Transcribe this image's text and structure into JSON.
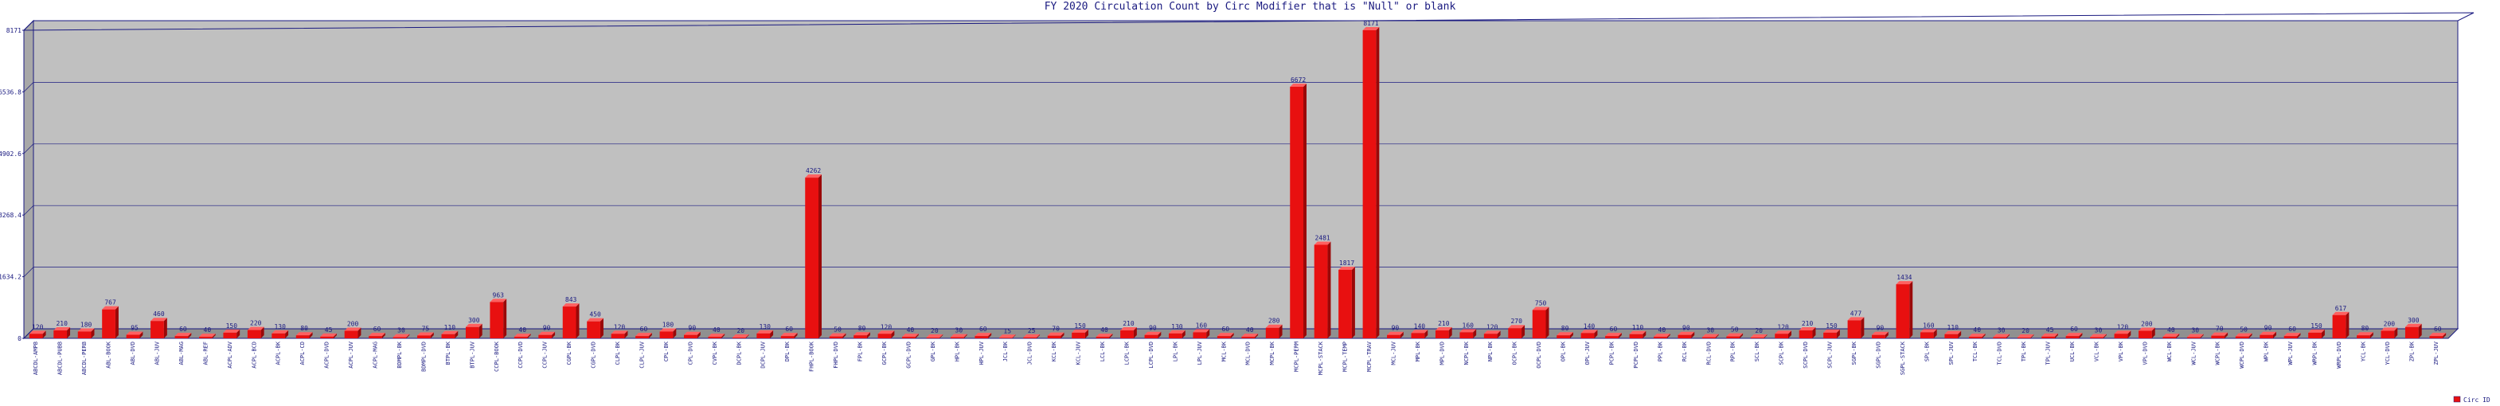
{
  "chart_data": {
    "type": "bar",
    "title": "FY 2020 Circulation Count by Circ Modifier that is \"Null\" or blank",
    "legend_label": "Circ ID",
    "color": "#e81010",
    "ylim": [
      0,
      8171
    ],
    "yticks": [
      0,
      1634.2,
      3268.4,
      4902.6,
      6536.8,
      8171
    ],
    "grid": true,
    "categories": [
      "ABCDL-AMPB",
      "ABCDL-PUBB",
      "ABCDL-PERB",
      "ABL-BOOK",
      "ABL-DVD",
      "ABL-JUV",
      "ABL-MAG",
      "ABL-REF",
      "ACPL-ADV",
      "ACPL-BCD",
      "ACPL-BK",
      "ACPL-CD",
      "ACPL-DVD",
      "ACPL-JUV",
      "ACPL-MAG",
      "BDMPL-BK",
      "BDMPL-DVD",
      "BTPL-BK",
      "BTPL-JUV",
      "CCPL-BOOK",
      "CCPL-DVD",
      "CCPL-JUV",
      "CGPL-BK",
      "CGPL-DVD",
      "CLPL-BK",
      "CLPL-JUV",
      "CPL-BK",
      "CPL-DVD",
      "CVPL-BK",
      "DCPL-BK",
      "DCPL-JUV",
      "DPL-BK",
      "FHPL-BOOK",
      "FHPL-DVD",
      "FPL-BK",
      "GCPL-BK",
      "GCPL-DVD",
      "GPL-BK",
      "HPL-BK",
      "HPL-JUV",
      "JCL-BK",
      "JCL-DVD",
      "KCL-BK",
      "KCL-JUV",
      "LCL-BK",
      "LCPL-BK",
      "LCPL-DVD",
      "LPL-BK",
      "LPL-JUV",
      "MCL-BK",
      "MCL-DVD",
      "MCPL-BK",
      "MCPL-PERM",
      "MCPL-STACK",
      "MCPL-TEMP",
      "MCPL-TRAV",
      "MCL-JUV",
      "MPL-BK",
      "MPL-DVD",
      "NCPL-BK",
      "NPL-BK",
      "OCPL-BK",
      "OCPL-DVD",
      "OPL-BK",
      "OPL-JUV",
      "PCPL-BK",
      "PCPL-DVD",
      "PPL-BK",
      "RCL-BK",
      "RCL-DVD",
      "RPL-BK",
      "SCL-BK",
      "SCPL-BK",
      "SCPL-DVD",
      "SCPL-JUV",
      "SGPL-BK",
      "SGPL-DVD",
      "SGPL-STACK",
      "SPL-BK",
      "SPL-JUV",
      "TCL-BK",
      "TCL-DVD",
      "TPL-BK",
      "TPL-JUV",
      "UCL-BK",
      "VCL-BK",
      "VPL-BK",
      "VPL-DVD",
      "WCL-BK",
      "WCL-JUV",
      "WCPL-BK",
      "WCPL-DVD",
      "WPL-BK",
      "WPL-JUV",
      "WRPL-BK",
      "WRPL-DVD",
      "YCL-BK",
      "YCL-DVD",
      "ZPL-BK",
      "ZPL-JUV"
    ],
    "values": [
      120,
      210,
      180,
      767,
      95,
      460,
      60,
      40,
      150,
      220,
      130,
      80,
      45,
      200,
      60,
      30,
      75,
      110,
      300,
      963,
      40,
      90,
      843,
      450,
      120,
      60,
      180,
      90,
      40,
      20,
      130,
      60,
      4262,
      50,
      80,
      120,
      40,
      20,
      30,
      60,
      15,
      25,
      70,
      150,
      40,
      210,
      90,
      130,
      160,
      60,
      40,
      280,
      6672,
      2481,
      1817,
      8171,
      90,
      140,
      210,
      160,
      120,
      270,
      750,
      80,
      140,
      60,
      110,
      40,
      90,
      30,
      50,
      20,
      120,
      210,
      150,
      477,
      90,
      1434,
      160,
      110,
      40,
      30,
      20,
      45,
      60,
      30,
      120,
      200,
      40,
      30,
      70,
      50,
      90,
      60,
      150,
      617,
      80,
      200,
      300,
      60
    ]
  }
}
